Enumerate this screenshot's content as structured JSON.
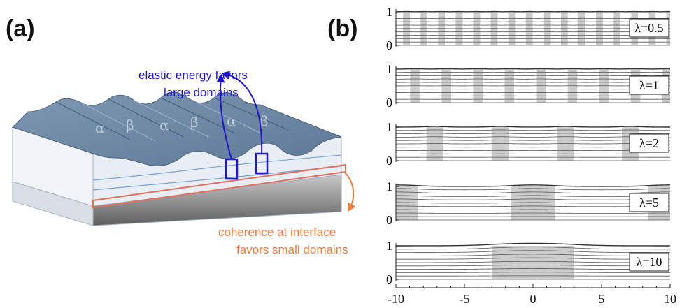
{
  "panels": {
    "a": "(a)",
    "b": "(b)"
  },
  "annotations": {
    "elastic_line1": "elastic energy favors",
    "elastic_line2": "large domains",
    "coherence_line1": "coherence at interface",
    "coherence_line2": "favors small domains"
  },
  "phases": [
    "α",
    "β",
    "α",
    "β",
    "α",
    "β"
  ],
  "colors": {
    "blue_annotation": "#1f17c9",
    "orange_annotation": "#ef7d3f",
    "film_top": "#6f8aa6",
    "film_side": "#e8edf4",
    "substrate": "#9a9a9a",
    "domain_shade": "#cccccc"
  },
  "chart_data": {
    "type": "line",
    "description_kind": "stacked profile plots",
    "x_ticks": [
      "-10",
      "-5",
      "0",
      "5",
      "10"
    ],
    "xlim": [
      -10,
      10
    ],
    "y_ticks": [
      "0",
      "1"
    ],
    "ylim": [
      0,
      1
    ],
    "rows": [
      {
        "label": "λ=0.5",
        "lambda": 0.5,
        "domain_period": 1.28,
        "domain_fraction": 0.39
      },
      {
        "label": "λ=1",
        "lambda": 1,
        "domain_period": 2.3,
        "domain_fraction": 0.3
      },
      {
        "label": "λ=2",
        "lambda": 2,
        "domain_period": 4.75,
        "domain_fraction": 0.26
      },
      {
        "label": "λ=5",
        "lambda": 5,
        "domain_centers": [
          -10,
          0,
          10
        ],
        "domain_width": 3.2
      },
      {
        "label": "λ=10",
        "lambda": 10,
        "domain_centers": [
          0
        ],
        "domain_width": 6.0
      }
    ]
  }
}
